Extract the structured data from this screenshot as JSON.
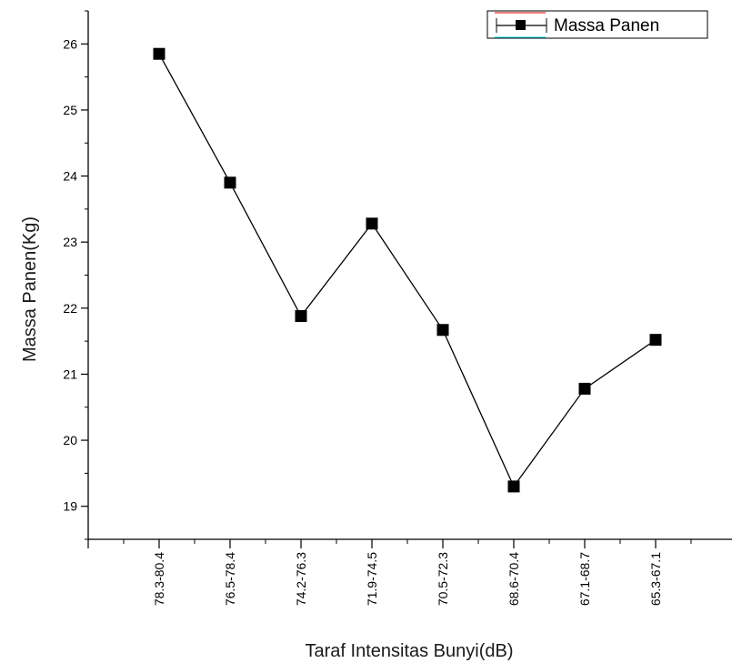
{
  "chart_data": {
    "type": "line",
    "xlabel": "Taraf Intensitas Bunyi(dB)",
    "ylabel": "Massa Panen(Kg)",
    "categories": [
      "78.3-80.4",
      "76.5-78.4",
      "74.2-76.3",
      "71.9-74.5",
      "70.5-72.3",
      "68.6-70.4",
      "67.1-68.7",
      "65.3-67.1"
    ],
    "series": [
      {
        "name": "Massa Panen",
        "values": [
          25.85,
          23.9,
          21.88,
          23.28,
          21.67,
          19.3,
          20.78,
          21.52
        ],
        "color": "#000000",
        "marker": "square"
      }
    ],
    "ylim": [
      18.5,
      26.5
    ],
    "yticks": [
      19,
      20,
      21,
      22,
      23,
      24,
      25,
      26
    ],
    "legend": {
      "position": "top-right",
      "label": "Massa Panen",
      "border_color": "#000000",
      "line_color": "#e00000"
    },
    "grid": false
  }
}
